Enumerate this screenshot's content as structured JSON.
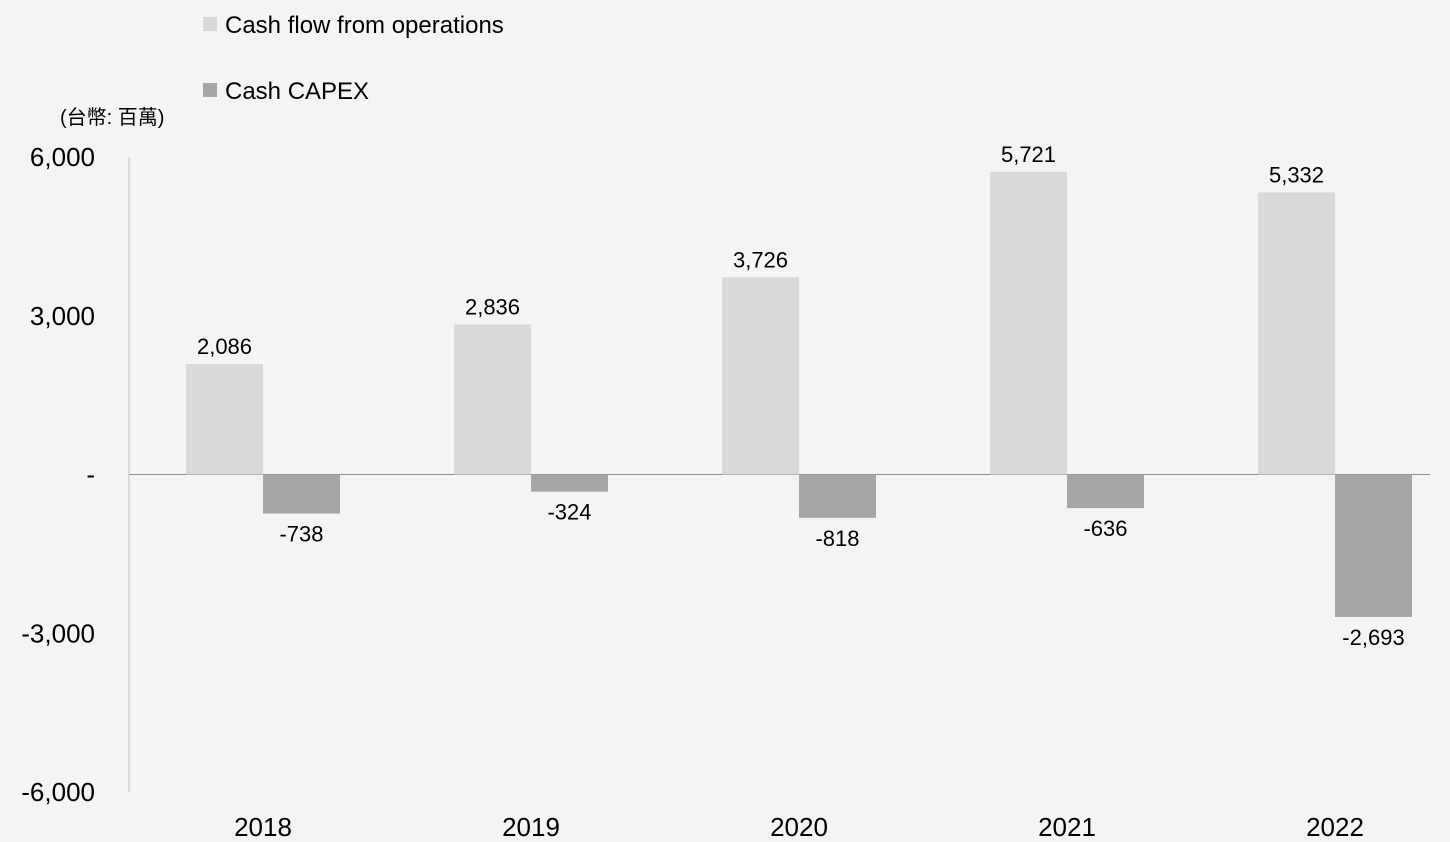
{
  "chart_data": {
    "type": "bar",
    "unit_label": "(台幣: 百萬)",
    "categories": [
      "2018",
      "2019",
      "2020",
      "2021",
      "2022"
    ],
    "series": [
      {
        "name": "Cash flow from operations",
        "color": "#d9d9d9",
        "values": [
          2086,
          2836,
          3726,
          5721,
          5332
        ],
        "labels": [
          "2,086",
          "2,836",
          "3,726",
          "5,721",
          "5,332"
        ]
      },
      {
        "name": "Cash CAPEX",
        "color": "#a6a6a6",
        "values": [
          -738,
          -324,
          -818,
          -636,
          -2693
        ],
        "labels": [
          "-738",
          "-324",
          "-818",
          "-636",
          "-2,693"
        ]
      }
    ],
    "ylim": [
      -6000,
      6000
    ],
    "yticks": [
      6000,
      3000,
      0,
      -3000,
      -6000
    ],
    "ytick_labels": [
      "6,000",
      "3,000",
      "-",
      "-3,000",
      "-6,000"
    ],
    "grid": false,
    "legend_position": "top-left"
  }
}
